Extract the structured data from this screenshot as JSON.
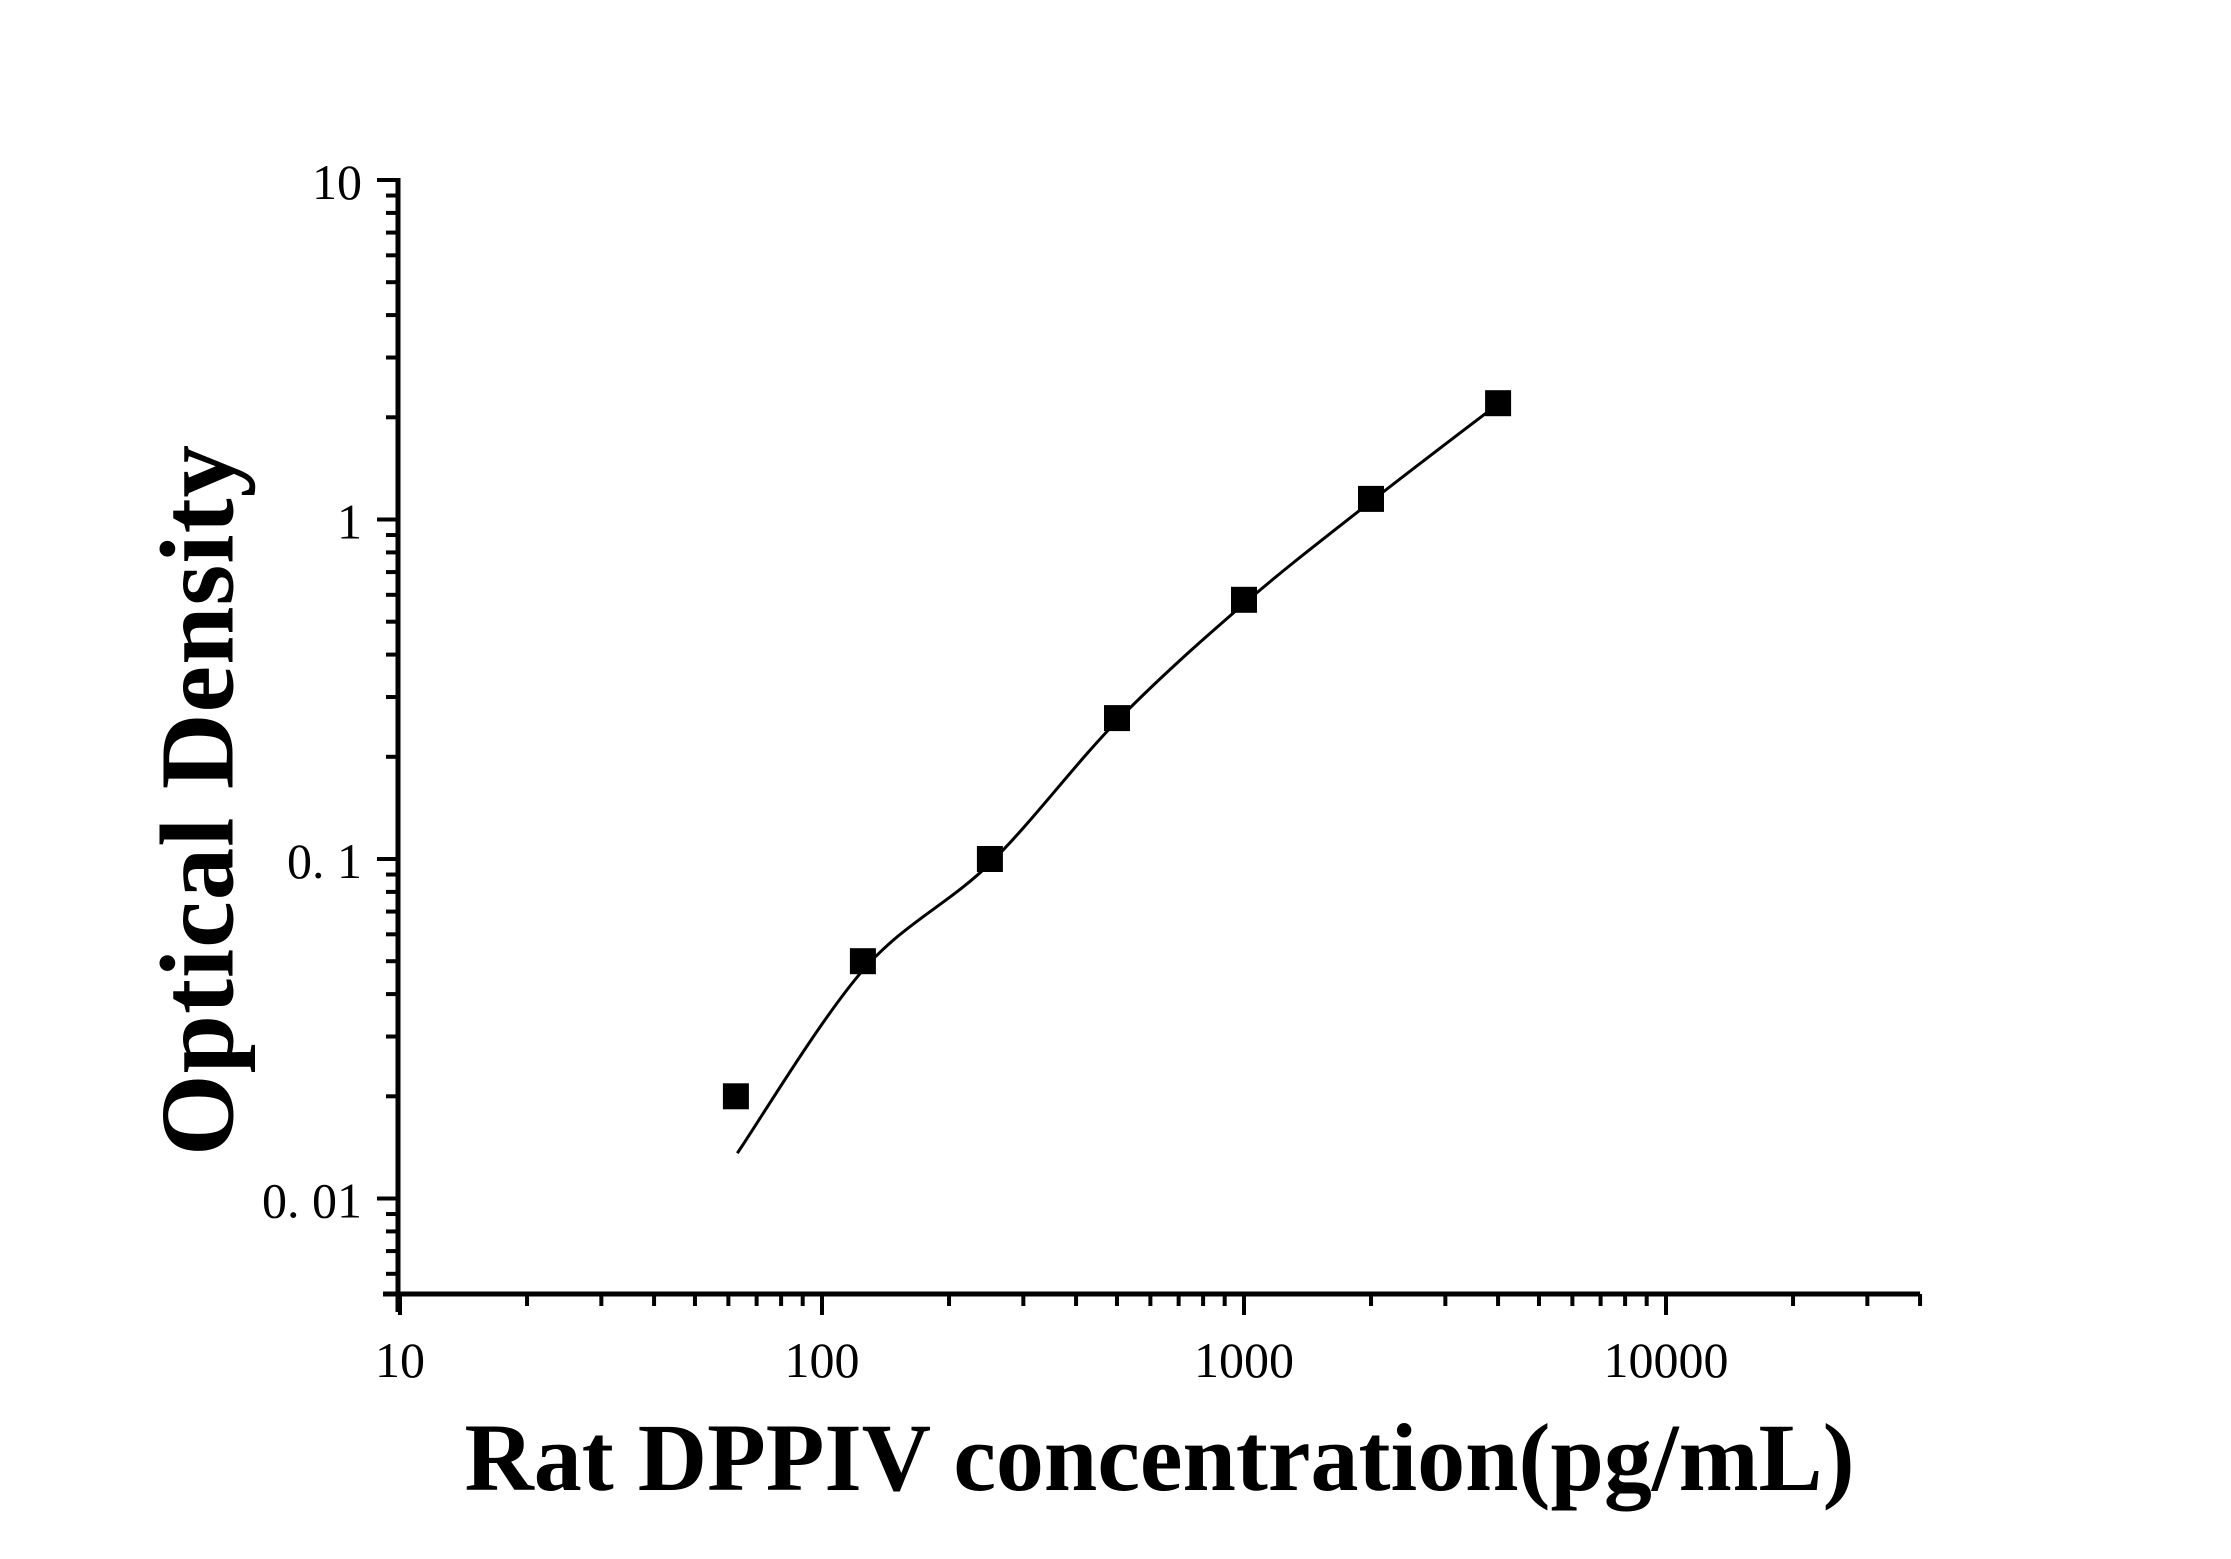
{
  "chart_data": {
    "type": "scatter",
    "title": "",
    "xlabel": "Rat DPPIV concentration(pg/mL)",
    "ylabel": "Optical Density",
    "x_scale": "log",
    "y_scale": "log",
    "xlim": [
      10,
      40000
    ],
    "ylim": [
      0.0052,
      10
    ],
    "grid": false,
    "legend_position": "none",
    "x_tick_values": [
      10,
      100,
      1000,
      10000
    ],
    "x_tick_labels": [
      "10",
      "100",
      "1000",
      "10000"
    ],
    "y_tick_values": [
      10,
      1,
      0.1,
      0.01
    ],
    "y_tick_labels": [
      "10",
      "1",
      "0. 1",
      "0. 01"
    ],
    "series": [
      {
        "name": "standard-points",
        "marker": "filled-square",
        "color": "#000000",
        "points": [
          [
            62.5,
            0.02
          ],
          [
            125,
            0.05
          ],
          [
            250,
            0.1
          ],
          [
            500,
            0.26
          ],
          [
            1000,
            0.58
          ],
          [
            2000,
            1.15
          ],
          [
            4000,
            2.2
          ]
        ]
      }
    ],
    "fit_curve": {
      "name": "fitted-line",
      "color": "#000000",
      "points": [
        [
          63,
          0.0136
        ],
        [
          125,
          0.047
        ],
        [
          250,
          0.097
        ],
        [
          500,
          0.255
        ],
        [
          1000,
          0.565
        ],
        [
          2000,
          1.13
        ],
        [
          4000,
          2.19
        ]
      ]
    },
    "colors": {
      "foreground": "#000000",
      "background": "#ffffff"
    }
  }
}
